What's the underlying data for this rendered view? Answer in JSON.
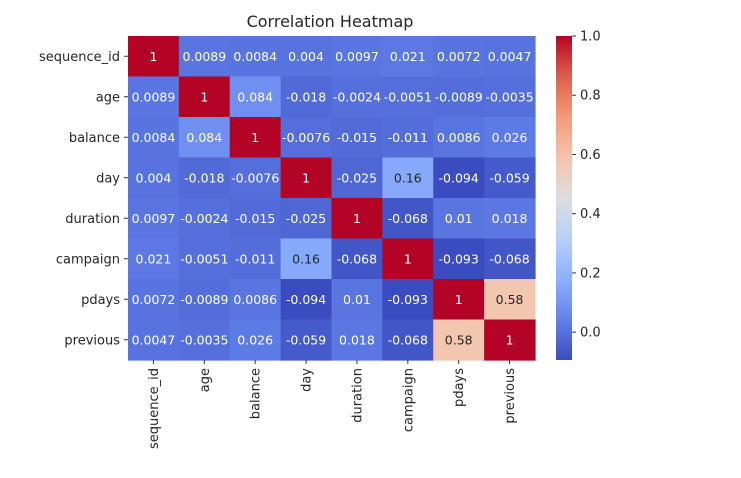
{
  "chart_data": {
    "type": "heatmap",
    "title": "Correlation Heatmap",
    "xlabel": "",
    "ylabel": "",
    "colormap": "coolwarm",
    "vmin": -0.094,
    "vmax": 1.0,
    "labels": [
      "sequence_id",
      "age",
      "balance",
      "day",
      "duration",
      "campaign",
      "pdays",
      "previous"
    ],
    "values": [
      [
        1,
        0.0089,
        0.0084,
        0.004,
        0.0097,
        0.021,
        0.0072,
        0.0047
      ],
      [
        0.0089,
        1,
        0.084,
        -0.018,
        -0.0024,
        -0.0051,
        -0.0089,
        -0.0035
      ],
      [
        0.0084,
        0.084,
        1,
        -0.0076,
        -0.015,
        -0.011,
        0.0086,
        0.026
      ],
      [
        0.004,
        -0.018,
        -0.0076,
        1,
        -0.025,
        0.16,
        -0.094,
        -0.059
      ],
      [
        0.0097,
        -0.0024,
        -0.015,
        -0.025,
        1,
        -0.068,
        0.01,
        0.018
      ],
      [
        0.021,
        -0.0051,
        -0.011,
        0.16,
        -0.068,
        1,
        -0.093,
        -0.068
      ],
      [
        0.0072,
        -0.0089,
        0.0086,
        -0.094,
        0.01,
        -0.093,
        1,
        0.58
      ],
      [
        0.0047,
        -0.0035,
        0.026,
        -0.059,
        0.018,
        -0.068,
        0.58,
        1
      ]
    ],
    "annotations": [
      [
        "1",
        "0.0089",
        "0.0084",
        "0.004",
        "0.0097",
        "0.021",
        "0.0072",
        "0.0047"
      ],
      [
        "0.0089",
        "1",
        "0.084",
        "-0.018",
        "-0.0024",
        "-0.0051",
        "-0.0089",
        "-0.0035"
      ],
      [
        "0.0084",
        "0.084",
        "1",
        "-0.0076",
        "-0.015",
        "-0.011",
        "0.0086",
        "0.026"
      ],
      [
        "0.004",
        "-0.018",
        "-0.0076",
        "1",
        "-0.025",
        "0.16",
        "-0.094",
        "-0.059"
      ],
      [
        "0.0097",
        "-0.0024",
        "-0.015",
        "-0.025",
        "1",
        "-0.068",
        "0.01",
        "0.018"
      ],
      [
        "0.021",
        "-0.0051",
        "-0.011",
        "0.16",
        "-0.068",
        "1",
        "-0.093",
        "-0.068"
      ],
      [
        "0.0072",
        "-0.0089",
        "0.0086",
        "-0.094",
        "0.01",
        "-0.093",
        "1",
        "0.58"
      ],
      [
        "0.0047",
        "-0.0035",
        "0.026",
        "-0.059",
        "0.018",
        "-0.068",
        "0.58",
        "1"
      ]
    ],
    "colorbar": {
      "ticks": [
        0.0,
        0.2,
        0.4,
        0.6,
        0.8,
        1.0
      ],
      "tick_labels": [
        "0.0",
        "0.2",
        "0.4",
        "0.6",
        "0.8",
        "1.0"
      ]
    }
  }
}
